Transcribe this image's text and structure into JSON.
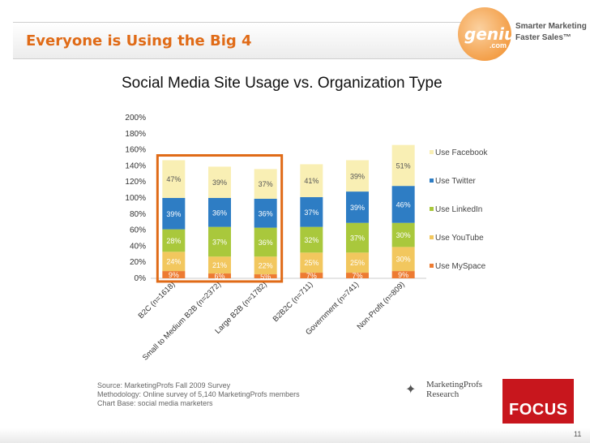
{
  "slide": {
    "title": "Everyone is Using the Big 4",
    "page_number": "11"
  },
  "logo": {
    "brand": "genius",
    "brand_sub": ".com",
    "tagline_1": "Smarter Marketing",
    "tagline_2": "Faster Sales™"
  },
  "colors": {
    "title": "#e06b17",
    "highlight": "#e06b17",
    "facebook": "#f9efb4",
    "twitter": "#2e7dc4",
    "linkedin": "#a9c83c",
    "youtube": "#f2c75e",
    "myspace": "#ed7b32",
    "focus": "#c8161d"
  },
  "chart_data": {
    "type": "bar",
    "stacked": true,
    "title": "Social Media Site Usage vs. Organization Type",
    "categories": [
      "B2C (n=1618)",
      "Small to Medium B2B (n=2372)",
      "Large B2B (n=1782)",
      "B2B2C (n=711)",
      "Government (n=741)",
      "Non-Profit (n=809)"
    ],
    "ylim": [
      0,
      200
    ],
    "yticks": [
      "0%",
      "20%",
      "40%",
      "60%",
      "80%",
      "100%",
      "120%",
      "140%",
      "160%",
      "180%",
      "200%"
    ],
    "legend_position": "right",
    "highlight": "box around first three bars",
    "series": [
      {
        "name": "Use MySpace",
        "values": [
          9,
          6,
          5,
          7,
          7,
          9
        ],
        "labels": [
          "9%",
          "6%",
          "5%",
          "7%",
          "7%",
          "9%"
        ]
      },
      {
        "name": "Use YouTube",
        "values": [
          24,
          21,
          22,
          25,
          25,
          30
        ],
        "labels": [
          "24%",
          "21%",
          "22%",
          "25%",
          "25%",
          "30%"
        ]
      },
      {
        "name": "Use LinkedIn",
        "values": [
          28,
          37,
          36,
          32,
          37,
          30
        ],
        "labels": [
          "28%",
          "37%",
          "36%",
          "32%",
          "37%",
          "30%"
        ]
      },
      {
        "name": "Use Twitter",
        "values": [
          39,
          36,
          36,
          37,
          39,
          46
        ],
        "labels": [
          "39%",
          "36%",
          "36%",
          "37%",
          "39%",
          "46%"
        ]
      },
      {
        "name": "Use Facebook",
        "values": [
          47,
          39,
          37,
          41,
          39,
          51
        ],
        "labels": [
          "47%",
          "39%",
          "37%",
          "41%",
          "39%",
          "51%"
        ]
      }
    ],
    "legend_order": [
      "Use Facebook",
      "Use Twitter",
      "Use LinkedIn",
      "Use YouTube",
      "Use MySpace"
    ]
  },
  "source": {
    "line1": "Source: MarketingProfs Fall 2009 Survey",
    "line2": "Methodology: Online survey of 5,140 MarketingProfs members",
    "line3": "Chart Base: social media marketers"
  },
  "mp_logo": {
    "line1": "MarketingProfs",
    "line2": "Research"
  },
  "focus_logo": {
    "text": "FOCUS"
  }
}
